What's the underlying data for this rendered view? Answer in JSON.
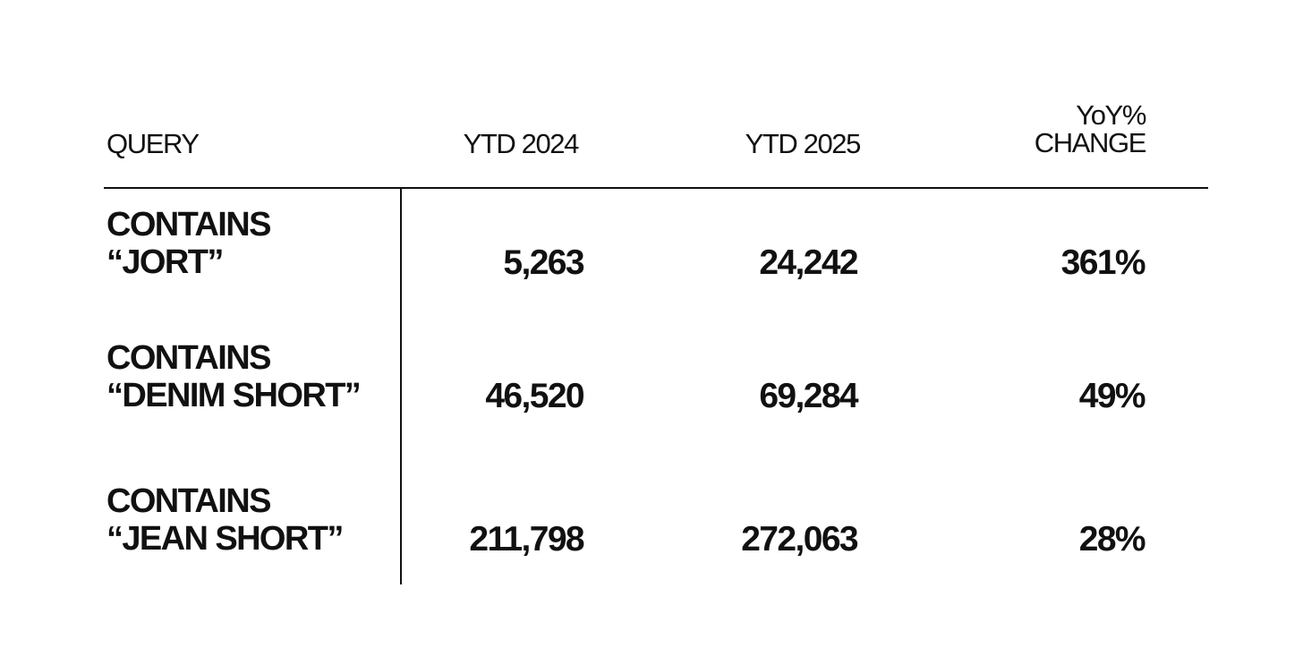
{
  "chart_data": {
    "type": "table",
    "columns": [
      "QUERY",
      "YTD 2024",
      "YTD 2025",
      "YoY% CHANGE"
    ],
    "header": {
      "query": "QUERY",
      "ytd_2024": "YTD 2024",
      "ytd_2025": "YTD 2025",
      "yoy_line1": "YoY%",
      "yoy_line2": "CHANGE"
    },
    "rows": [
      {
        "query_line1": "CONTAINS",
        "query_line2": "“JORT”",
        "ytd_2024": "5,263",
        "ytd_2025": "24,242",
        "yoy_change": "361%"
      },
      {
        "query_line1": "CONTAINS",
        "query_line2": "“DENIM SHORT”",
        "ytd_2024": "46,520",
        "ytd_2025": "69,284",
        "yoy_change": "49%"
      },
      {
        "query_line1": "CONTAINS",
        "query_line2": "“JEAN SHORT”",
        "ytd_2024": "211,798",
        "ytd_2025": "272,063",
        "yoy_change": "28%"
      }
    ]
  },
  "colors": {
    "text": "#111111",
    "background": "#ffffff",
    "rule": "#111111"
  }
}
